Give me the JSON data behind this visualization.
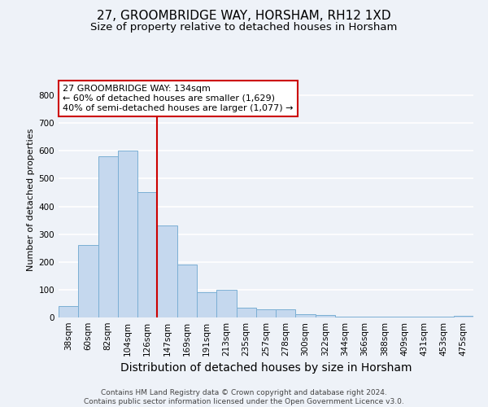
{
  "title": "27, GROOMBRIDGE WAY, HORSHAM, RH12 1XD",
  "subtitle": "Size of property relative to detached houses in Horsham",
  "xlabel": "Distribution of detached houses by size in Horsham",
  "ylabel": "Number of detached properties",
  "footer_line1": "Contains HM Land Registry data © Crown copyright and database right 2024.",
  "footer_line2": "Contains public sector information licensed under the Open Government Licence v3.0.",
  "categories": [
    "38sqm",
    "60sqm",
    "82sqm",
    "104sqm",
    "126sqm",
    "147sqm",
    "169sqm",
    "191sqm",
    "213sqm",
    "235sqm",
    "257sqm",
    "278sqm",
    "300sqm",
    "322sqm",
    "344sqm",
    "366sqm",
    "388sqm",
    "409sqm",
    "431sqm",
    "453sqm",
    "475sqm"
  ],
  "values": [
    40,
    260,
    580,
    600,
    450,
    330,
    190,
    90,
    100,
    35,
    30,
    30,
    13,
    10,
    2,
    2,
    2,
    2,
    2,
    2,
    5
  ],
  "bar_color": "#c5d8ee",
  "bar_edge_color": "#7bafd4",
  "red_line_x": 4.5,
  "annotation_text": "27 GROOMBRIDGE WAY: 134sqm\n← 60% of detached houses are smaller (1,629)\n40% of semi-detached houses are larger (1,077) →",
  "annotation_box_color": "#ffffff",
  "annotation_edge_color": "#cc0000",
  "red_line_color": "#cc0000",
  "ylim": [
    0,
    850
  ],
  "yticks": [
    0,
    100,
    200,
    300,
    400,
    500,
    600,
    700,
    800
  ],
  "bg_color": "#eef2f8",
  "grid_color": "#ffffff",
  "title_fontsize": 11,
  "subtitle_fontsize": 9.5,
  "xlabel_fontsize": 10,
  "ylabel_fontsize": 8,
  "tick_fontsize": 7.5,
  "footer_fontsize": 6.5,
  "annot_fontsize": 8
}
